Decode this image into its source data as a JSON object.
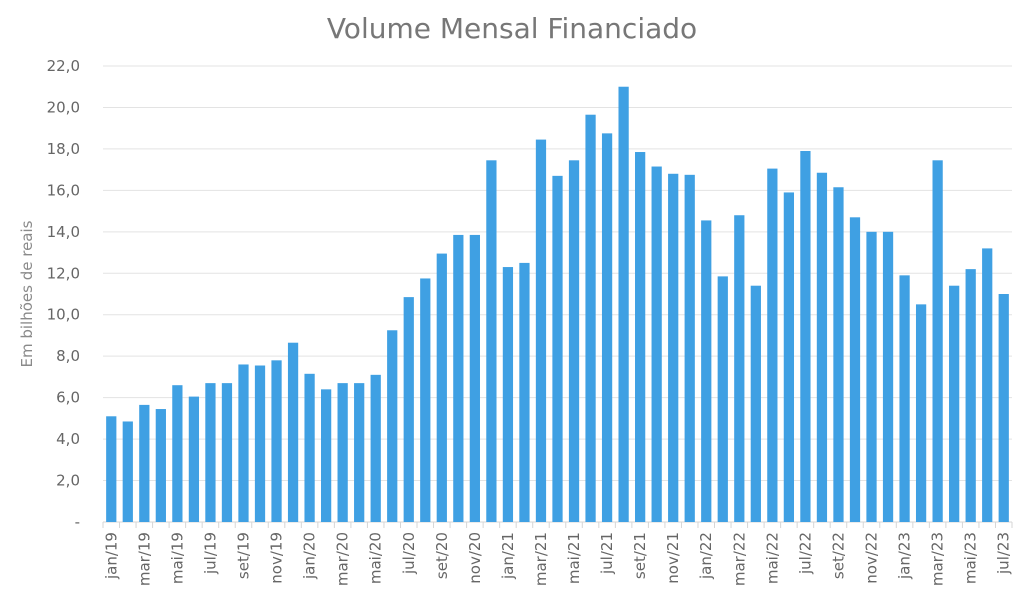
{
  "chart_data": {
    "type": "bar",
    "title": "Volume Mensal Financiado",
    "ylabel": "Em bilhões de reais",
    "xlabel": "",
    "ylim": [
      0,
      22
    ],
    "y_ticks": [
      0,
      2,
      4,
      6,
      8,
      10,
      12,
      14,
      16,
      18,
      20,
      22
    ],
    "y_tick_labels": [
      "-",
      "2,0",
      "4,0",
      "6,0",
      "8,0",
      "10,0",
      "12,0",
      "14,0",
      "16,0",
      "18,0",
      "20,0",
      "22,0"
    ],
    "grid": true,
    "legend": "none",
    "bar_color": "#3fa0e3",
    "categories": [
      "jan/19",
      "fev/19",
      "mar/19",
      "abr/19",
      "mai/19",
      "jun/19",
      "jul/19",
      "ago/19",
      "set/19",
      "out/19",
      "nov/19",
      "dez/19",
      "jan/20",
      "fev/20",
      "mar/20",
      "abr/20",
      "mai/20",
      "jun/20",
      "jul/20",
      "ago/20",
      "set/20",
      "out/20",
      "nov/20",
      "dez/20",
      "jan/21",
      "fev/21",
      "mar/21",
      "abr/21",
      "mai/21",
      "jun/21",
      "jul/21",
      "ago/21",
      "set/21",
      "out/21",
      "nov/21",
      "dez/21",
      "jan/22",
      "fev/22",
      "mar/22",
      "abr/22",
      "mai/22",
      "jun/22",
      "jul/22",
      "ago/22",
      "set/22",
      "out/22",
      "nov/22",
      "dez/22",
      "jan/23",
      "fev/23",
      "mar/23",
      "abr/23",
      "mai/23",
      "jun/23",
      "jul/23"
    ],
    "x_tick_labels": [
      "jan/19",
      "mar/19",
      "mai/19",
      "jul/19",
      "set/19",
      "nov/19",
      "jan/20",
      "mar/20",
      "mai/20",
      "jul/20",
      "set/20",
      "nov/20",
      "jan/21",
      "mar/21",
      "mai/21",
      "jul/21",
      "set/21",
      "nov/21",
      "jan/22",
      "mar/22",
      "mai/22",
      "jul/22",
      "set/22",
      "nov/22",
      "jan/23",
      "mar/23",
      "mai/23",
      "jul/23"
    ],
    "values": [
      5.1,
      4.85,
      5.65,
      5.45,
      6.6,
      6.05,
      6.7,
      6.7,
      7.6,
      7.55,
      7.8,
      8.65,
      7.15,
      6.4,
      6.7,
      6.7,
      7.1,
      9.25,
      10.85,
      11.75,
      12.95,
      13.85,
      13.85,
      17.45,
      12.3,
      12.5,
      18.45,
      16.7,
      17.45,
      19.65,
      18.75,
      21.0,
      17.85,
      17.15,
      16.8,
      16.75,
      14.55,
      11.85,
      14.8,
      11.4,
      17.05,
      15.9,
      17.9,
      16.85,
      16.15,
      14.7,
      14.0,
      14.0,
      11.9,
      10.5,
      17.45,
      11.4,
      12.2,
      13.2,
      11.0
    ]
  }
}
